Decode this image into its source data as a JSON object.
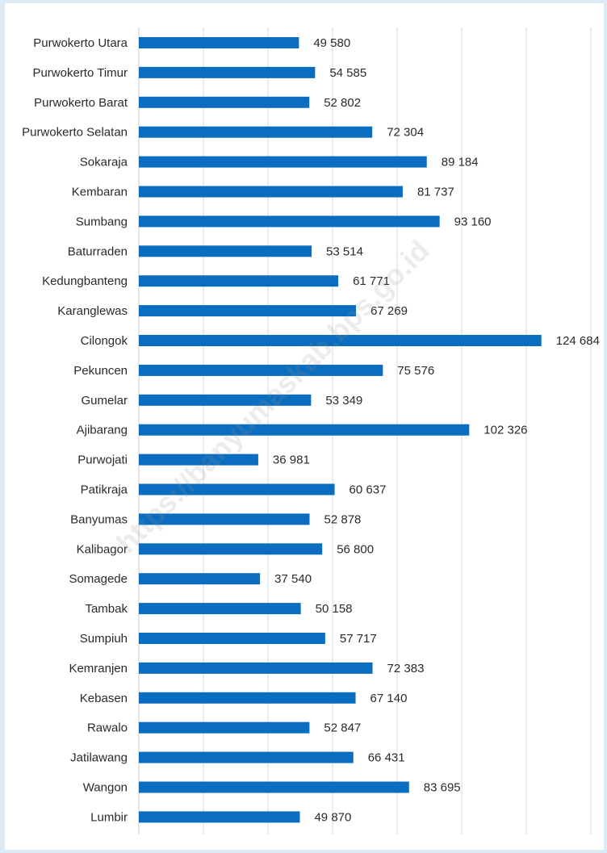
{
  "watermark": "https://banyumaskab.bps.go.id",
  "colors": {
    "bar": "#0a6dbf",
    "background": "#dcebf3"
  },
  "chart_data": {
    "type": "bar",
    "orientation": "horizontal",
    "title": "",
    "xlabel": "",
    "ylabel": "",
    "xlim": [
      0,
      140000
    ],
    "grid": true,
    "categories": [
      "Purwokerto Utara",
      "Purwokerto Timur",
      "Purwokerto Barat",
      "Purwokerto Selatan",
      "Sokaraja",
      "Kembaran",
      "Sumbang",
      "Baturraden",
      "Kedungbanteng",
      "Karanglewas",
      "Cilongok",
      "Pekuncen",
      "Gumelar",
      "Ajibarang",
      "Purwojati",
      "Patikraja",
      "Banyumas",
      "Kalibagor",
      "Somagede",
      "Tambak",
      "Sumpiuh",
      "Kemranjen",
      "Kebasen",
      "Rawalo",
      "Jatilawang",
      "Wangon",
      "Lumbir"
    ],
    "values": [
      49580,
      54585,
      52802,
      72304,
      89184,
      81737,
      93160,
      53514,
      61771,
      67269,
      124684,
      75576,
      53349,
      102326,
      36981,
      60637,
      52878,
      56800,
      37540,
      50158,
      57717,
      72383,
      67140,
      52847,
      66431,
      83695,
      49870
    ],
    "value_labels": [
      "49 580",
      "54 585",
      "52 802",
      "72 304",
      "89 184",
      "81 737",
      "93 160",
      "53 514",
      "61 771",
      "67 269",
      "124 684",
      "75 576",
      "53 349",
      "102 326",
      "36 981",
      "60 637",
      "52 878",
      "56 800",
      "37 540",
      "50 158",
      "57 717",
      "72 383",
      "67 140",
      "52 847",
      "66 431",
      "83 695",
      "49 870"
    ]
  }
}
